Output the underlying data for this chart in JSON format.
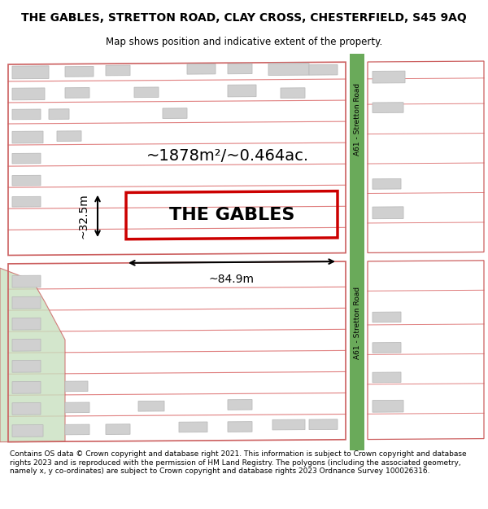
{
  "title": "THE GABLES, STRETTON ROAD, CLAY CROSS, CHESTERFIELD, S45 9AQ",
  "subtitle": "Map shows position and indicative extent of the property.",
  "footer": "Contains OS data © Crown copyright and database right 2021. This information is subject to Crown copyright and database rights 2023 and is reproduced with the permission of HM Land Registry. The polygons (including the associated geometry, namely x, y co-ordinates) are subject to Crown copyright and database rights 2023 Ordnance Survey 100026316.",
  "road_color": "#6aaa5a",
  "road_label": "A61 - Stretton Road",
  "plot_outline_color": "#cc0000",
  "plot_label": "THE GABLES",
  "area_label": "~1878m²/~0.464ac.",
  "width_label": "~84.9m",
  "height_label": "~32.5m",
  "building_fill": "#d0d0d0",
  "building_outline": "#bbbbbb",
  "parcel_line_color": "#e08080",
  "parcel_outer_color": "#cc6060",
  "green_fill": "#c8e0c0",
  "map_bg": "#ffffff",
  "title_fontsize": 10,
  "subtitle_fontsize": 8.5,
  "footer_fontsize": 6.5
}
